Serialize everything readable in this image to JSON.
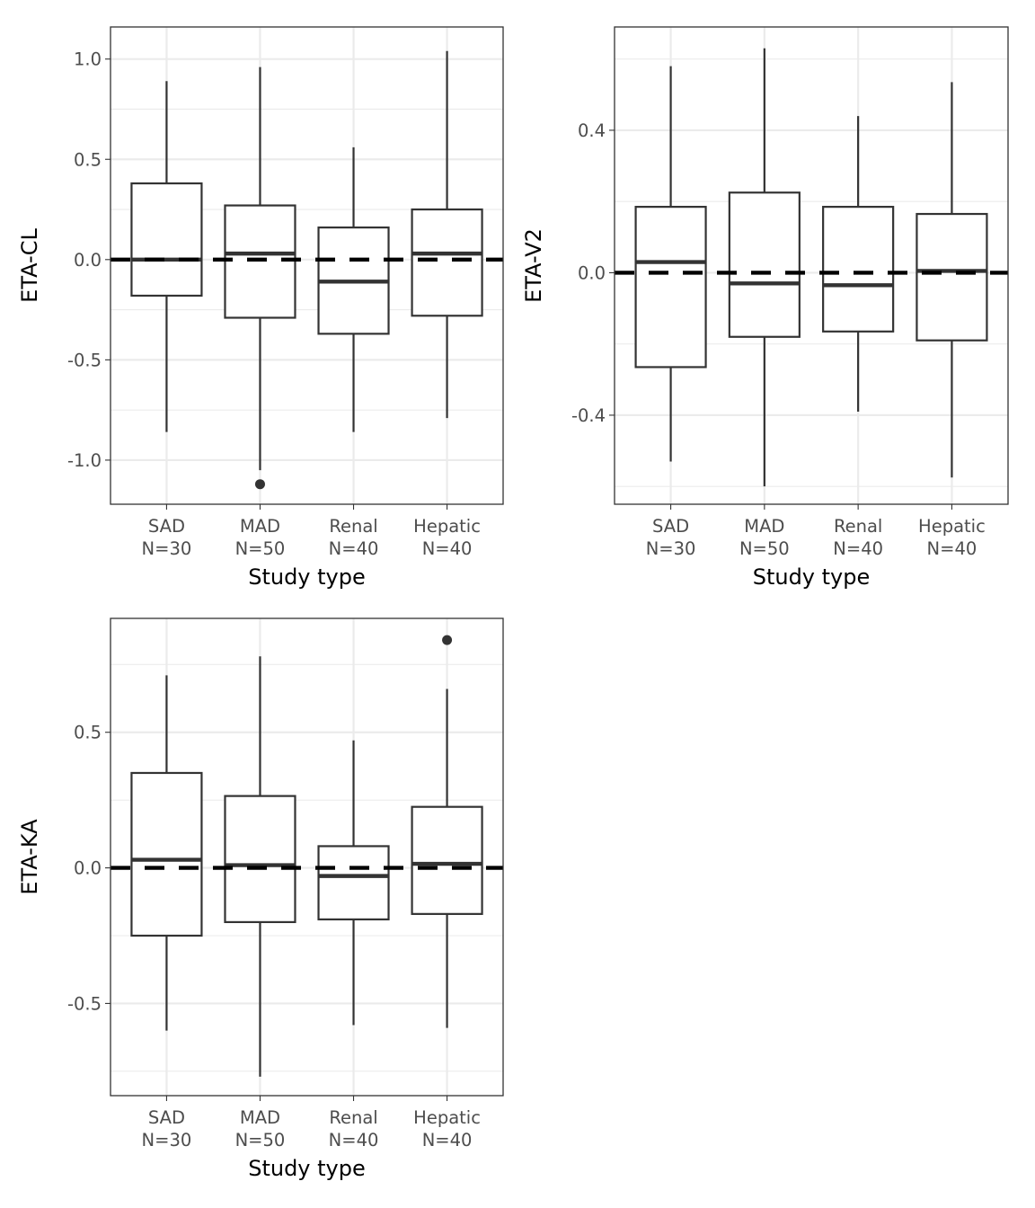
{
  "chart_data": [
    {
      "type": "boxplot",
      "ylabel": "ETA-CL",
      "xlabel": "Study type",
      "categories": [
        {
          "name": "SAD",
          "n_label": "N=30"
        },
        {
          "name": "MAD",
          "n_label": "N=50"
        },
        {
          "name": "Renal",
          "n_label": "N=40"
        },
        {
          "name": "Hepatic",
          "n_label": "N=40"
        }
      ],
      "boxes": [
        {
          "low": -0.86,
          "q1": -0.18,
          "median": 0.0,
          "q3": 0.38,
          "high": 0.89,
          "outliers": []
        },
        {
          "low": -1.05,
          "q1": -0.29,
          "median": 0.03,
          "q3": 0.27,
          "high": 0.96,
          "outliers": [
            -1.12
          ]
        },
        {
          "low": -0.86,
          "q1": -0.37,
          "median": -0.11,
          "q3": 0.16,
          "high": 0.56,
          "outliers": []
        },
        {
          "low": -0.79,
          "q1": -0.28,
          "median": 0.03,
          "q3": 0.25,
          "high": 1.04,
          "outliers": []
        }
      ],
      "reference_line": 0.0,
      "ylim": [
        -1.22,
        1.16
      ],
      "y_major_ticks": [
        -1.0,
        -0.5,
        0.0,
        0.5,
        1.0
      ],
      "y_tick_labels": [
        "-1.0",
        "-0.5",
        "0.0",
        "0.5",
        "1.0"
      ],
      "y_minor_ticks": [
        -0.75,
        -0.25,
        0.25,
        0.75
      ],
      "grid": true
    },
    {
      "type": "boxplot",
      "ylabel": "ETA-V2",
      "xlabel": "Study type",
      "categories": [
        {
          "name": "SAD",
          "n_label": "N=30"
        },
        {
          "name": "MAD",
          "n_label": "N=50"
        },
        {
          "name": "Renal",
          "n_label": "N=40"
        },
        {
          "name": "Hepatic",
          "n_label": "N=40"
        }
      ],
      "boxes": [
        {
          "low": -0.53,
          "q1": -0.265,
          "median": 0.03,
          "q3": 0.185,
          "high": 0.58,
          "outliers": []
        },
        {
          "low": -0.6,
          "q1": -0.18,
          "median": -0.03,
          "q3": 0.225,
          "high": 0.63,
          "outliers": []
        },
        {
          "low": -0.39,
          "q1": -0.165,
          "median": -0.035,
          "q3": 0.185,
          "high": 0.44,
          "outliers": []
        },
        {
          "low": -0.575,
          "q1": -0.19,
          "median": 0.005,
          "q3": 0.165,
          "high": 0.535,
          "outliers": []
        }
      ],
      "reference_line": 0.0,
      "ylim": [
        -0.65,
        0.69
      ],
      "y_major_ticks": [
        -0.4,
        0.0,
        0.4
      ],
      "y_tick_labels": [
        "-0.4",
        "0.0",
        "0.4"
      ],
      "y_minor_ticks": [
        -0.6,
        -0.2,
        0.2,
        0.6
      ],
      "grid": true
    },
    {
      "type": "boxplot",
      "ylabel": "ETA-KA",
      "xlabel": "Study type",
      "categories": [
        {
          "name": "SAD",
          "n_label": "N=30"
        },
        {
          "name": "MAD",
          "n_label": "N=50"
        },
        {
          "name": "Renal",
          "n_label": "N=40"
        },
        {
          "name": "Hepatic",
          "n_label": "N=40"
        }
      ],
      "boxes": [
        {
          "low": -0.6,
          "q1": -0.25,
          "median": 0.03,
          "q3": 0.35,
          "high": 0.71,
          "outliers": []
        },
        {
          "low": -0.77,
          "q1": -0.2,
          "median": 0.01,
          "q3": 0.265,
          "high": 0.78,
          "outliers": []
        },
        {
          "low": -0.58,
          "q1": -0.19,
          "median": -0.03,
          "q3": 0.08,
          "high": 0.47,
          "outliers": []
        },
        {
          "low": -0.59,
          "q1": -0.17,
          "median": 0.015,
          "q3": 0.225,
          "high": 0.66,
          "outliers": [
            0.84
          ]
        }
      ],
      "reference_line": 0.0,
      "ylim": [
        -0.84,
        0.92
      ],
      "y_major_ticks": [
        -0.5,
        0.0,
        0.5
      ],
      "y_tick_labels": [
        "-0.5",
        "0.0",
        "0.5"
      ],
      "y_minor_ticks": [
        -0.75,
        -0.25,
        0.25,
        0.75
      ],
      "grid": true
    }
  ]
}
